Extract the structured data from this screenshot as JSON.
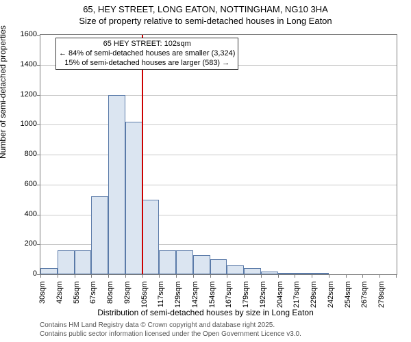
{
  "title_line1": "65, HEY STREET, LONG EATON, NOTTINGHAM, NG10 3HA",
  "title_line2": "Size of property relative to semi-detached houses in Long Eaton",
  "y_axis_label": "Number of semi-detached properties",
  "x_axis_label": "Distribution of semi-detached houses by size in Long Eaton",
  "footer_line1": "Contains HM Land Registry data © Crown copyright and database right 2025.",
  "footer_line2": "Contains public sector information licensed under the Open Government Licence v3.0.",
  "chart": {
    "type": "histogram",
    "ylim": [
      0,
      1600
    ],
    "ytick_step": 200,
    "x_ticks": [
      "30sqm",
      "42sqm",
      "55sqm",
      "67sqm",
      "80sqm",
      "92sqm",
      "105sqm",
      "117sqm",
      "129sqm",
      "142sqm",
      "154sqm",
      "167sqm",
      "179sqm",
      "192sqm",
      "204sqm",
      "217sqm",
      "229sqm",
      "242sqm",
      "254sqm",
      "267sqm",
      "279sqm"
    ],
    "bars": [
      40,
      160,
      160,
      520,
      1200,
      1020,
      500,
      160,
      160,
      130,
      100,
      60,
      40,
      20,
      10,
      5,
      5,
      0,
      0,
      0,
      0
    ],
    "bar_fill": "#dbe5f1",
    "bar_stroke": "#5a7aa8",
    "grid_color": "#c8c8c8",
    "axis_color": "#7a7a7a",
    "background_color": "#ffffff",
    "reference_line": {
      "index": 6,
      "color": "#cc0000",
      "width": 2
    }
  },
  "annotation": {
    "line1": "65 HEY STREET: 102sqm",
    "line2": "← 84% of semi-detached houses are smaller (3,324)",
    "line3": "15% of semi-detached houses are larger (583) →"
  }
}
